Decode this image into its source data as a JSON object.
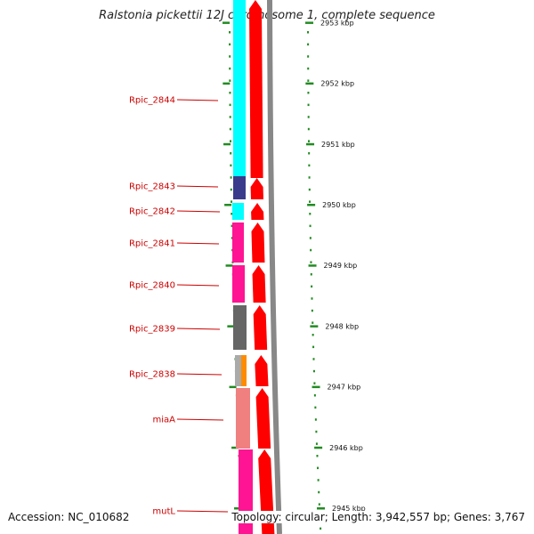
{
  "title": "Ralstonia pickettii 12J chromosome 1, complete sequence",
  "footer": {
    "accession": "Accession: NC_010682",
    "summary": "Topology: circular; Length: 3,942,557 bp; Genes: 3,767"
  },
  "scale": {
    "unit": "kbp",
    "ticks": [
      {
        "kbp": 2953,
        "label": "2953 kbp"
      },
      {
        "kbp": 2952,
        "label": "2952 kbp"
      },
      {
        "kbp": 2951,
        "label": "2951 kbp"
      },
      {
        "kbp": 2950,
        "label": "2950 kbp"
      },
      {
        "kbp": 2949,
        "label": "2949 kbp"
      },
      {
        "kbp": 2948,
        "label": "2948 kbp"
      },
      {
        "kbp": 2947,
        "label": "2947 kbp"
      },
      {
        "kbp": 2946,
        "label": "2946 kbp"
      },
      {
        "kbp": 2945,
        "label": "2945 kbp"
      }
    ]
  },
  "genes": [
    {
      "name": "Rpic_2844",
      "color": "#00ffff"
    },
    {
      "name": "Rpic_2843",
      "color": "#3b3b8c"
    },
    {
      "name": "Rpic_2842",
      "color": "#00ffff"
    },
    {
      "name": "Rpic_2841",
      "color": "#ff1493"
    },
    {
      "name": "Rpic_2840",
      "color": "#ff1493"
    },
    {
      "name": "Rpic_2839",
      "color": "#666666"
    },
    {
      "name": "Rpic_2838",
      "color": "#aaaaaa"
    },
    {
      "name": "",
      "color": "#ff8c00"
    },
    {
      "name": "miaA",
      "color": "#f08080"
    },
    {
      "name": "mutL",
      "color": "#ff1493"
    }
  ],
  "colors": {
    "strand_arrow": "#ff0000",
    "label_text": "#cc0000",
    "minor_tick": "#228B22",
    "backbone": "#888888"
  }
}
